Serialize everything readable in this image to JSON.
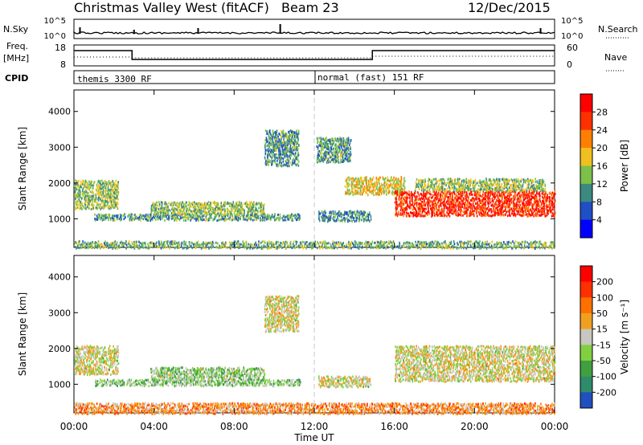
{
  "header": {
    "title": "Christmas Valley West (fitACF)",
    "beam": "Beam 23",
    "date": "12/Dec/2015"
  },
  "status": {
    "left_top": "N.Sky",
    "left_top_ticks": [
      "10^5",
      "10^0"
    ],
    "right_top": "N.Search",
    "right_top_ticks": [
      "10^5",
      "10^0"
    ],
    "left_mid": "Freq.",
    "left_mid_unit": "[MHz]",
    "left_mid_ticks": [
      "18",
      "8"
    ],
    "right_mid": "Nave",
    "right_mid_ticks": [
      "60",
      "0"
    ],
    "cpid_label": "CPID",
    "cpid_1": "themis 3300 RF",
    "cpid_2": "normal (fast) 151 RF"
  },
  "chart_data": [
    {
      "type": "heatmap",
      "title": "",
      "ylabel": "Slant Range [km]",
      "xlabel": "",
      "ylim": [
        200,
        4600
      ],
      "yticks": [
        "1000",
        "2000",
        "3000",
        "4000"
      ],
      "x": [
        "00:00",
        "04:00",
        "08:00",
        "12:00",
        "16:00",
        "20:00",
        "00:00"
      ],
      "colorbar": {
        "label": "Power [dB]",
        "ticks": [
          "4",
          "8",
          "12",
          "16",
          "20",
          "24",
          "28"
        ],
        "colors": [
          "#0000ff",
          "#1f4fc4",
          "#3a8a80",
          "#7cc04a",
          "#f0c020",
          "#ff8000",
          "#ff3000",
          "#ff0000"
        ]
      },
      "regions": [
        {
          "t0": 0.0,
          "t1": 2.2,
          "r0": 1300,
          "r1": 2100,
          "level": 0.45
        },
        {
          "t0": 1.0,
          "t1": 11.3,
          "r0": 980,
          "r1": 1160,
          "level": 0.35
        },
        {
          "t0": 3.8,
          "t1": 9.5,
          "r0": 1150,
          "r1": 1500,
          "level": 0.45
        },
        {
          "t0": 12.2,
          "t1": 14.8,
          "r0": 950,
          "r1": 1250,
          "level": 0.3
        },
        {
          "t0": 13.5,
          "t1": 16.5,
          "r0": 1700,
          "r1": 2200,
          "level": 0.55
        },
        {
          "t0": 16.0,
          "t1": 24.0,
          "r0": 1100,
          "r1": 1800,
          "level": 0.85
        },
        {
          "t0": 17.0,
          "t1": 23.5,
          "r0": 1800,
          "r1": 2150,
          "level": 0.45
        },
        {
          "t0": 0.0,
          "t1": 24.0,
          "r0": 200,
          "r1": 400,
          "level": 0.4
        },
        {
          "t0": 9.5,
          "t1": 11.2,
          "r0": 2500,
          "r1": 3500,
          "level": 0.35
        },
        {
          "t0": 12.1,
          "t1": 13.8,
          "r0": 2600,
          "r1": 3300,
          "level": 0.35
        }
      ]
    },
    {
      "type": "heatmap",
      "title": "",
      "ylabel": "Slant Range [km]",
      "xlabel": "Time UT",
      "ylim": [
        200,
        4600
      ],
      "yticks": [
        "1000",
        "2000",
        "3000",
        "4000"
      ],
      "x": [
        "00:00",
        "04:00",
        "08:00",
        "12:00",
        "16:00",
        "20:00",
        "00:00"
      ],
      "colorbar": {
        "label": "Velocity [m s⁻¹]",
        "ticks": [
          "200",
          "100",
          "50",
          "15",
          "-15",
          "-50",
          "-100",
          "-200"
        ],
        "colors": [
          "#2050c0",
          "#2f8c6a",
          "#40a040",
          "#80d040",
          "#c8c8c0",
          "#f0a020",
          "#ff7000",
          "#ff3000",
          "#ff0000"
        ]
      },
      "regions": [
        {
          "t0": 0.0,
          "t1": 2.2,
          "r0": 1300,
          "r1": 2100,
          "level": 0.5
        },
        {
          "t0": 1.0,
          "t1": 11.3,
          "r0": 980,
          "r1": 1160,
          "level": 0.38
        },
        {
          "t0": 3.8,
          "t1": 9.5,
          "r0": 1150,
          "r1": 1500,
          "level": 0.4
        },
        {
          "t0": 12.2,
          "t1": 14.8,
          "r0": 950,
          "r1": 1250,
          "level": 0.5
        },
        {
          "t0": 16.0,
          "t1": 24.0,
          "r0": 1100,
          "r1": 2100,
          "level": 0.5
        },
        {
          "t0": 0.0,
          "t1": 24.0,
          "r0": 200,
          "r1": 500,
          "level": 0.66
        },
        {
          "t0": 9.5,
          "t1": 11.2,
          "r0": 2500,
          "r1": 3500,
          "level": 0.5
        }
      ]
    }
  ]
}
